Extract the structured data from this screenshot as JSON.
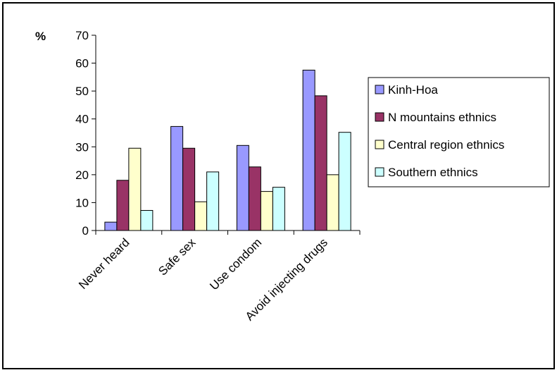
{
  "chart_data": {
    "type": "bar",
    "title": "",
    "ylabel": "%",
    "xlabel": "",
    "categories": [
      "Never heard",
      "Safe sex",
      "Use condom",
      "Avoid injecting drugs"
    ],
    "series": [
      {
        "name": "Kinh-Hoa",
        "values": [
          3,
          37.3,
          30.5,
          57.5
        ],
        "color": "#9999ff"
      },
      {
        "name": "N mountains ethnics",
        "values": [
          18,
          29.5,
          22.8,
          48.3
        ],
        "color": "#993366"
      },
      {
        "name": "Central region ethnics",
        "values": [
          29.5,
          10.3,
          14,
          20
        ],
        "color": "#ffffcc"
      },
      {
        "name": "Southern ethnics",
        "values": [
          7.2,
          21,
          15.5,
          35.2
        ],
        "color": "#ccffff"
      }
    ],
    "ylim": [
      0,
      70
    ],
    "yticks": [
      0,
      10,
      20,
      30,
      40,
      50,
      60,
      70
    ],
    "grid": false,
    "legend_position": "right"
  }
}
